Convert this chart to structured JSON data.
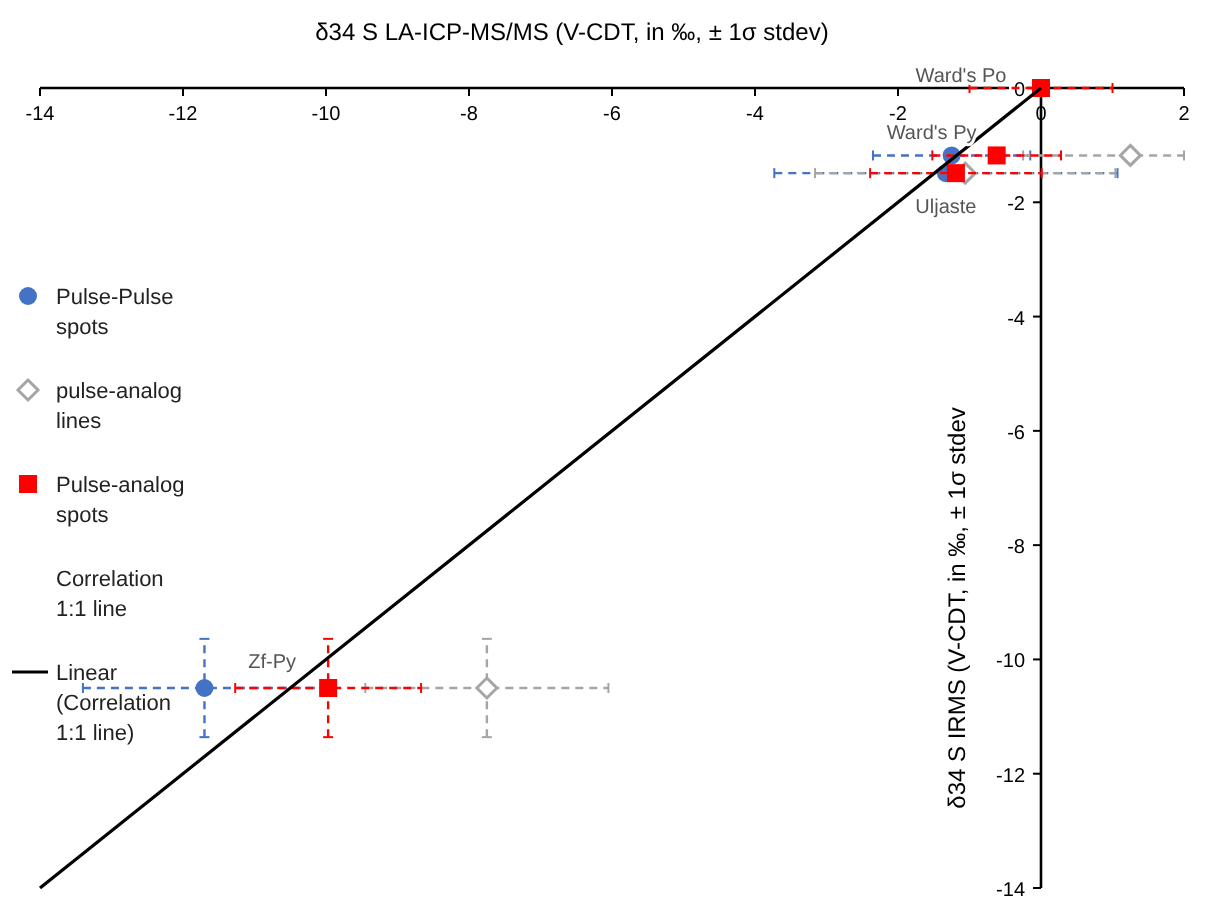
{
  "chart_data": {
    "type": "scatter",
    "xlabel": "δ34 S LA-ICP-MS/MS (V-CDT, in ‰, ± 1σ stdev)",
    "ylabel": "δ34 S IRMS (V-CDT, in ‰, ± 1σ stdev",
    "xlim": [
      -14,
      2
    ],
    "xticks": [
      -14,
      -12,
      -10,
      -8,
      -6,
      -4,
      -2,
      0,
      2
    ],
    "ylim": [
      -14,
      0
    ],
    "yticks": [
      0,
      -2,
      -4,
      -6,
      -8,
      -10,
      -12,
      -14
    ],
    "legend": "left",
    "grid": false,
    "series": [
      {
        "name": "Pulse-Pulse spots",
        "marker": "circle",
        "color": "#4472c4",
        "x": [
          -1.25,
          -1.33,
          -11.7
        ],
        "values": [
          -1.18,
          -1.49,
          -10.5
        ],
        "xerrors": [
          1.1,
          2.4,
          1.7
        ],
        "errors": [
          null,
          null,
          0.86
        ]
      },
      {
        "name": "pulse-analog lines",
        "marker": "diamond",
        "color": "#a5a5a5",
        "x": [
          1.25,
          -1.06,
          -7.75
        ],
        "values": [
          -1.18,
          -1.49,
          -10.5
        ],
        "xerrors": [
          [
            -0.25,
            2
          ],
          2.1,
          1.7
        ],
        "errors": [
          null,
          null,
          0.86
        ]
      },
      {
        "name": "Pulse-analog spots",
        "marker": "square",
        "color": "#ff0000",
        "x": [
          0,
          -0.62,
          -1.19,
          -9.97
        ],
        "values": [
          0,
          -1.18,
          -1.49,
          -10.5
        ],
        "xerrors": [
          1.0,
          0.9,
          1.2,
          1.3
        ],
        "errors": [
          null,
          null,
          null,
          0.86
        ]
      },
      {
        "name": "Linear (Correlation 1:1 line)",
        "type": "line",
        "marker": "none",
        "line_style": "solid",
        "color": "#000000",
        "x": [
          -14,
          0
        ],
        "values": [
          -14,
          0
        ]
      }
    ],
    "annotations": [
      {
        "text": "Ward's Po",
        "x": 0,
        "y": 0
      },
      {
        "text": "Ward's Py",
        "x": -1.25,
        "y": -1.18
      },
      {
        "text": "Uljaste",
        "x": -1.33,
        "y": -1.49
      },
      {
        "text": "Zf-Py",
        "x": -9.97,
        "y": -10.5
      },
      "Correlation 1:1 line"
    ]
  }
}
